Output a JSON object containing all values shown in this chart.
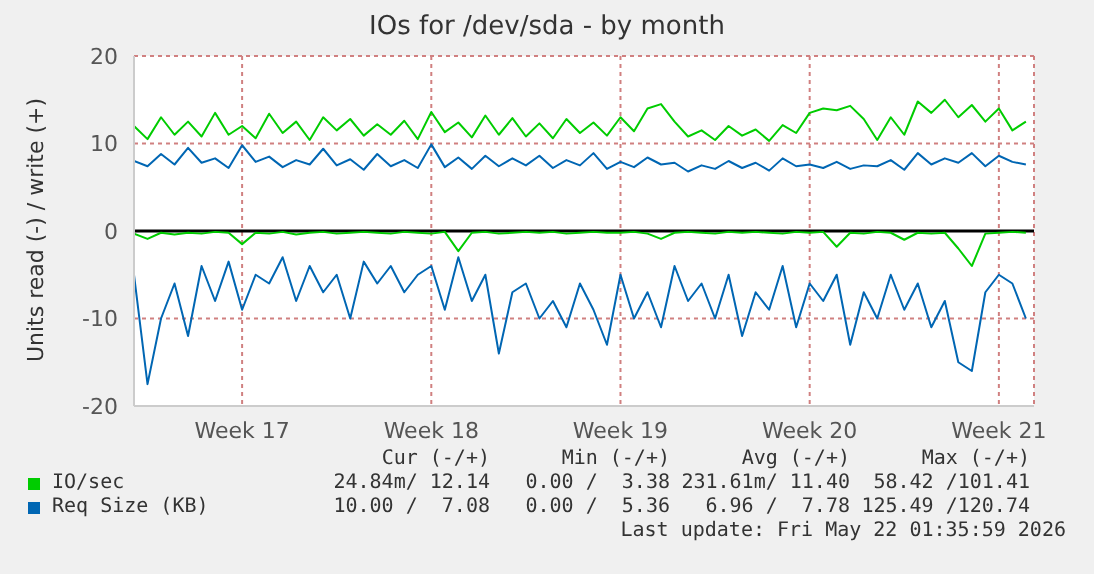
{
  "chart_data": {
    "type": "line",
    "title": "IOs for /dev/sda - by month",
    "ylabel": "Units read (-) / write (+)",
    "categories": [
      null,
      null,
      null,
      null,
      null,
      null,
      null,
      null,
      "Week 17",
      null,
      null,
      null,
      null,
      null,
      null,
      null,
      null,
      null,
      null,
      null,
      null,
      null,
      "Week 18",
      null,
      null,
      null,
      null,
      null,
      null,
      null,
      null,
      null,
      null,
      null,
      null,
      null,
      "Week 19",
      null,
      null,
      null,
      null,
      null,
      null,
      null,
      null,
      null,
      null,
      null,
      null,
      null,
      "Week 20",
      null,
      null,
      null,
      null,
      null,
      null,
      null,
      null,
      null,
      null,
      null,
      null,
      null,
      "Week 21",
      null,
      null
    ],
    "series": [
      {
        "name": "IO/sec",
        "color": "#00cc00",
        "values": [
          12,
          10.5,
          13,
          11,
          12.5,
          10.8,
          13.5,
          11,
          12,
          10.6,
          13.4,
          11.2,
          12.5,
          10.4,
          13,
          11.5,
          12.8,
          10.9,
          12.2,
          11,
          12.6,
          10.5,
          13.6,
          11.3,
          12.4,
          10.7,
          13.2,
          11,
          12.9,
          10.8,
          12.3,
          10.6,
          12.8,
          11.2,
          12.4,
          10.9,
          13,
          11.4,
          14,
          14.5,
          12.5,
          10.8,
          11.5,
          10.4,
          12,
          10.9,
          11.6,
          10.3,
          12.1,
          11.2,
          13.5,
          14,
          13.8,
          14.3,
          12.8,
          10.4,
          13,
          11,
          14.8,
          13.5,
          15,
          13,
          14.4,
          12.5,
          14,
          11.5,
          12.5
        ]
      },
      {
        "color": "#00cc00",
        "values": [
          -0.3,
          -0.9,
          -0.2,
          -0.4,
          -0.2,
          -0.3,
          -0.1,
          -0.2,
          -1.5,
          -0.2,
          -0.3,
          -0.1,
          -0.4,
          -0.2,
          -0.1,
          -0.3,
          -0.2,
          -0.1,
          -0.2,
          -0.3,
          -0.1,
          -0.2,
          -0.3,
          -0.1,
          -2.3,
          -0.2,
          -0.1,
          -0.3,
          -0.2,
          -0.1,
          -0.2,
          -0.1,
          -0.3,
          -0.2,
          -0.1,
          -0.2,
          -0.2,
          -0.1,
          -0.3,
          -0.9,
          -0.2,
          -0.1,
          -0.2,
          -0.3,
          -0.1,
          -0.2,
          -0.1,
          -0.2,
          -0.3,
          -0.1,
          -0.2,
          -0.1,
          -1.8,
          -0.2,
          -0.3,
          -0.1,
          -0.2,
          -1,
          -0.2,
          -0.3,
          -0.2,
          -2,
          -4,
          -0.3,
          -0.2,
          -0.1,
          -0.2
        ]
      },
      {
        "name": "Req Size (KB)",
        "color": "#0066b3",
        "values": [
          8,
          7.4,
          8.8,
          7.6,
          9.5,
          7.8,
          8.3,
          7.2,
          9.8,
          7.9,
          8.5,
          7.3,
          8.1,
          7.6,
          9.4,
          7.5,
          8.2,
          7,
          8.8,
          7.4,
          8.1,
          7.2,
          9.9,
          7.3,
          8.4,
          7.1,
          8.6,
          7.4,
          8.3,
          7.5,
          8.6,
          7.2,
          8.1,
          7.5,
          8.9,
          7.1,
          7.9,
          7.3,
          8.4,
          7.6,
          7.8,
          6.8,
          7.5,
          7.1,
          8,
          7.2,
          7.8,
          6.9,
          8.3,
          7.4,
          7.6,
          7.2,
          7.9,
          7.1,
          7.5,
          7.4,
          8.1,
          7,
          8.9,
          7.6,
          8.3,
          7.8,
          8.9,
          7.4,
          8.6,
          7.9,
          7.6
        ]
      },
      {
        "color": "#0066b3",
        "values": [
          -5,
          -17.5,
          -10,
          -6,
          -12,
          -4,
          -8,
          -3.5,
          -9,
          -5,
          -6,
          -3,
          -8,
          -4,
          -7,
          -5,
          -10,
          -3.5,
          -6,
          -4,
          -7,
          -5,
          -4,
          -9,
          -3,
          -8,
          -5,
          -14,
          -7,
          -6,
          -10,
          -8,
          -11,
          -6,
          -9,
          -13,
          -5,
          -10,
          -7,
          -11,
          -4,
          -8,
          -6,
          -10,
          -5,
          -12,
          -7,
          -9,
          -4,
          -11,
          -6,
          -8,
          -5,
          -13,
          -7,
          -10,
          -5,
          -9,
          -6,
          -11,
          -8,
          -15,
          -16,
          -7,
          -5,
          -6,
          -10
        ]
      }
    ],
    "ylim": [
      -20,
      20
    ],
    "yticks": [
      -20,
      -10,
      0,
      10,
      20
    ],
    "ref_lines": [
      {
        "axis": "y",
        "value": 0,
        "color": "#000000"
      }
    ],
    "grid": true,
    "legend": "bottom",
    "marker": "none",
    "line_style": "solid",
    "annotations": [
      "Cur (-/+)",
      "Min (-/+)",
      "Avg (-/+)",
      "Max (-/+)",
      "24.84m/ 12.14",
      "0.00 /  3.38",
      "231.61m/ 11.40",
      "58.42 /101.41",
      "10.00 /  7.08",
      "0.00 /  5.36",
      "6.96 /  7.78",
      "125.49 /120.74",
      "Last update: Fri May 22 01:35:59 2026"
    ]
  }
}
